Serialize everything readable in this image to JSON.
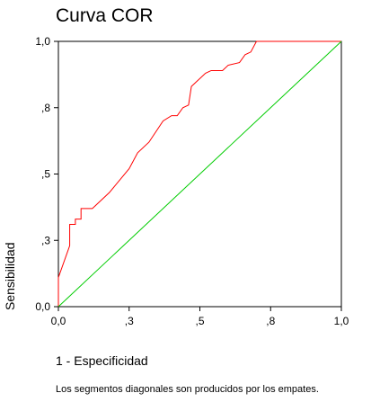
{
  "chart_data": {
    "type": "line",
    "title": "Curva COR",
    "xlabel": "1 - Especificidad",
    "ylabel": "Sensibilidad",
    "xlim": [
      0,
      1
    ],
    "ylim": [
      0,
      1
    ],
    "x_ticks": [
      "0,0",
      ",3",
      ",5",
      ",8",
      "1,0"
    ],
    "y_ticks": [
      "0,0",
      ",3",
      ",5",
      ",8",
      "1,0"
    ],
    "x_tick_values": [
      0,
      0.25,
      0.5,
      0.75,
      1
    ],
    "y_tick_values": [
      0,
      0.25,
      0.5,
      0.75,
      1
    ],
    "grid": false,
    "series": [
      {
        "color": "#ff0000",
        "x": [
          0,
          0,
          0.04,
          0.04,
          0.06,
          0.06,
          0.08,
          0.08,
          0.1,
          0.12,
          0.18,
          0.25,
          0.28,
          0.32,
          0.37,
          0.4,
          0.42,
          0.44,
          0.46,
          0.47,
          0.52,
          0.54,
          0.58,
          0.6,
          0.64,
          0.66,
          0.68,
          0.7,
          1
        ],
        "y": [
          0,
          0.11,
          0.23,
          0.31,
          0.31,
          0.33,
          0.33,
          0.37,
          0.37,
          0.37,
          0.43,
          0.52,
          0.58,
          0.62,
          0.7,
          0.72,
          0.72,
          0.75,
          0.76,
          0.83,
          0.88,
          0.89,
          0.89,
          0.91,
          0.92,
          0.95,
          0.96,
          1.0,
          1.0
        ]
      },
      {
        "color": "#00cc00",
        "x": [
          0,
          1
        ],
        "y": [
          0,
          1
        ]
      }
    ]
  },
  "footnote": "Los segmentos diagonales son producidos por los empates."
}
